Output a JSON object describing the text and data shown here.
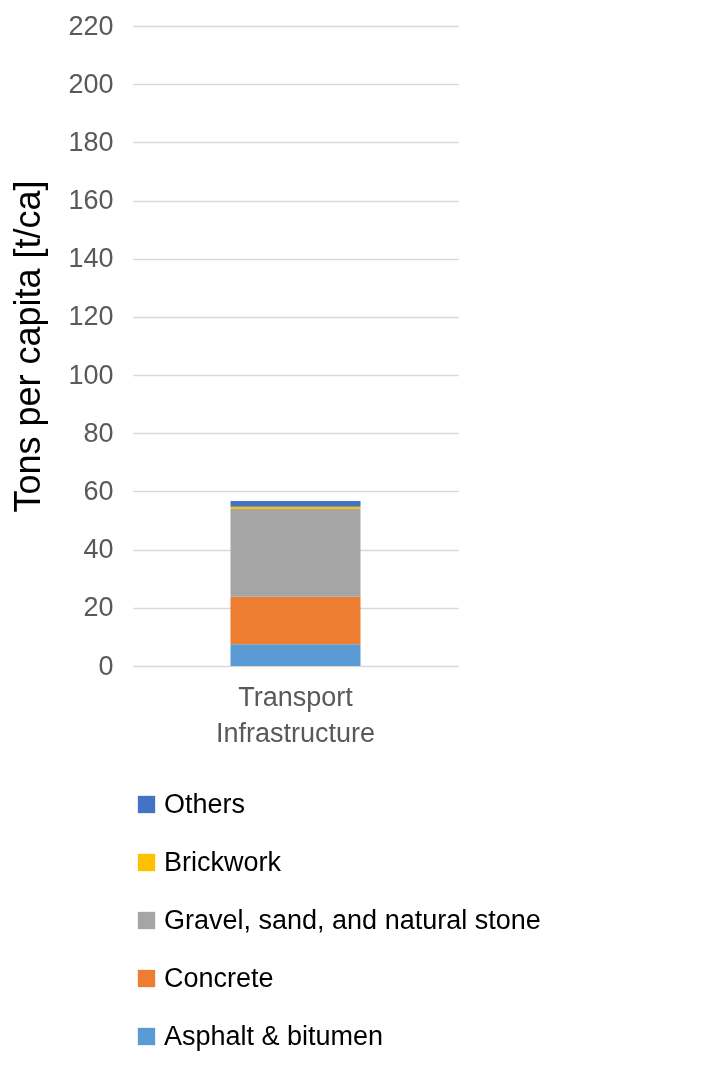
{
  "chart_data": {
    "type": "bar",
    "stacked": true,
    "ylabel": "Tons per capita [t/ca]",
    "categories": [
      "Transport Infrastructure"
    ],
    "series": [
      {
        "name": "Asphalt & bitumen",
        "color": "#5b9bd5",
        "values": [
          7.5
        ]
      },
      {
        "name": "Concrete",
        "color": "#ed7d31",
        "values": [
          16.3
        ]
      },
      {
        "name": "Gravel, sand, and natural stone",
        "color": "#a5a5a5",
        "values": [
          30.2
        ]
      },
      {
        "name": "Brickwork",
        "color": "#ffc000",
        "values": [
          0.7
        ]
      },
      {
        "name": "Others",
        "color": "#4472c4",
        "values": [
          2.0
        ]
      }
    ],
    "ylim": [
      0,
      220
    ],
    "yticks": [
      0,
      20,
      40,
      60,
      80,
      100,
      120,
      140,
      160,
      180,
      200,
      220
    ],
    "grid": "y",
    "legend": "bottom"
  }
}
